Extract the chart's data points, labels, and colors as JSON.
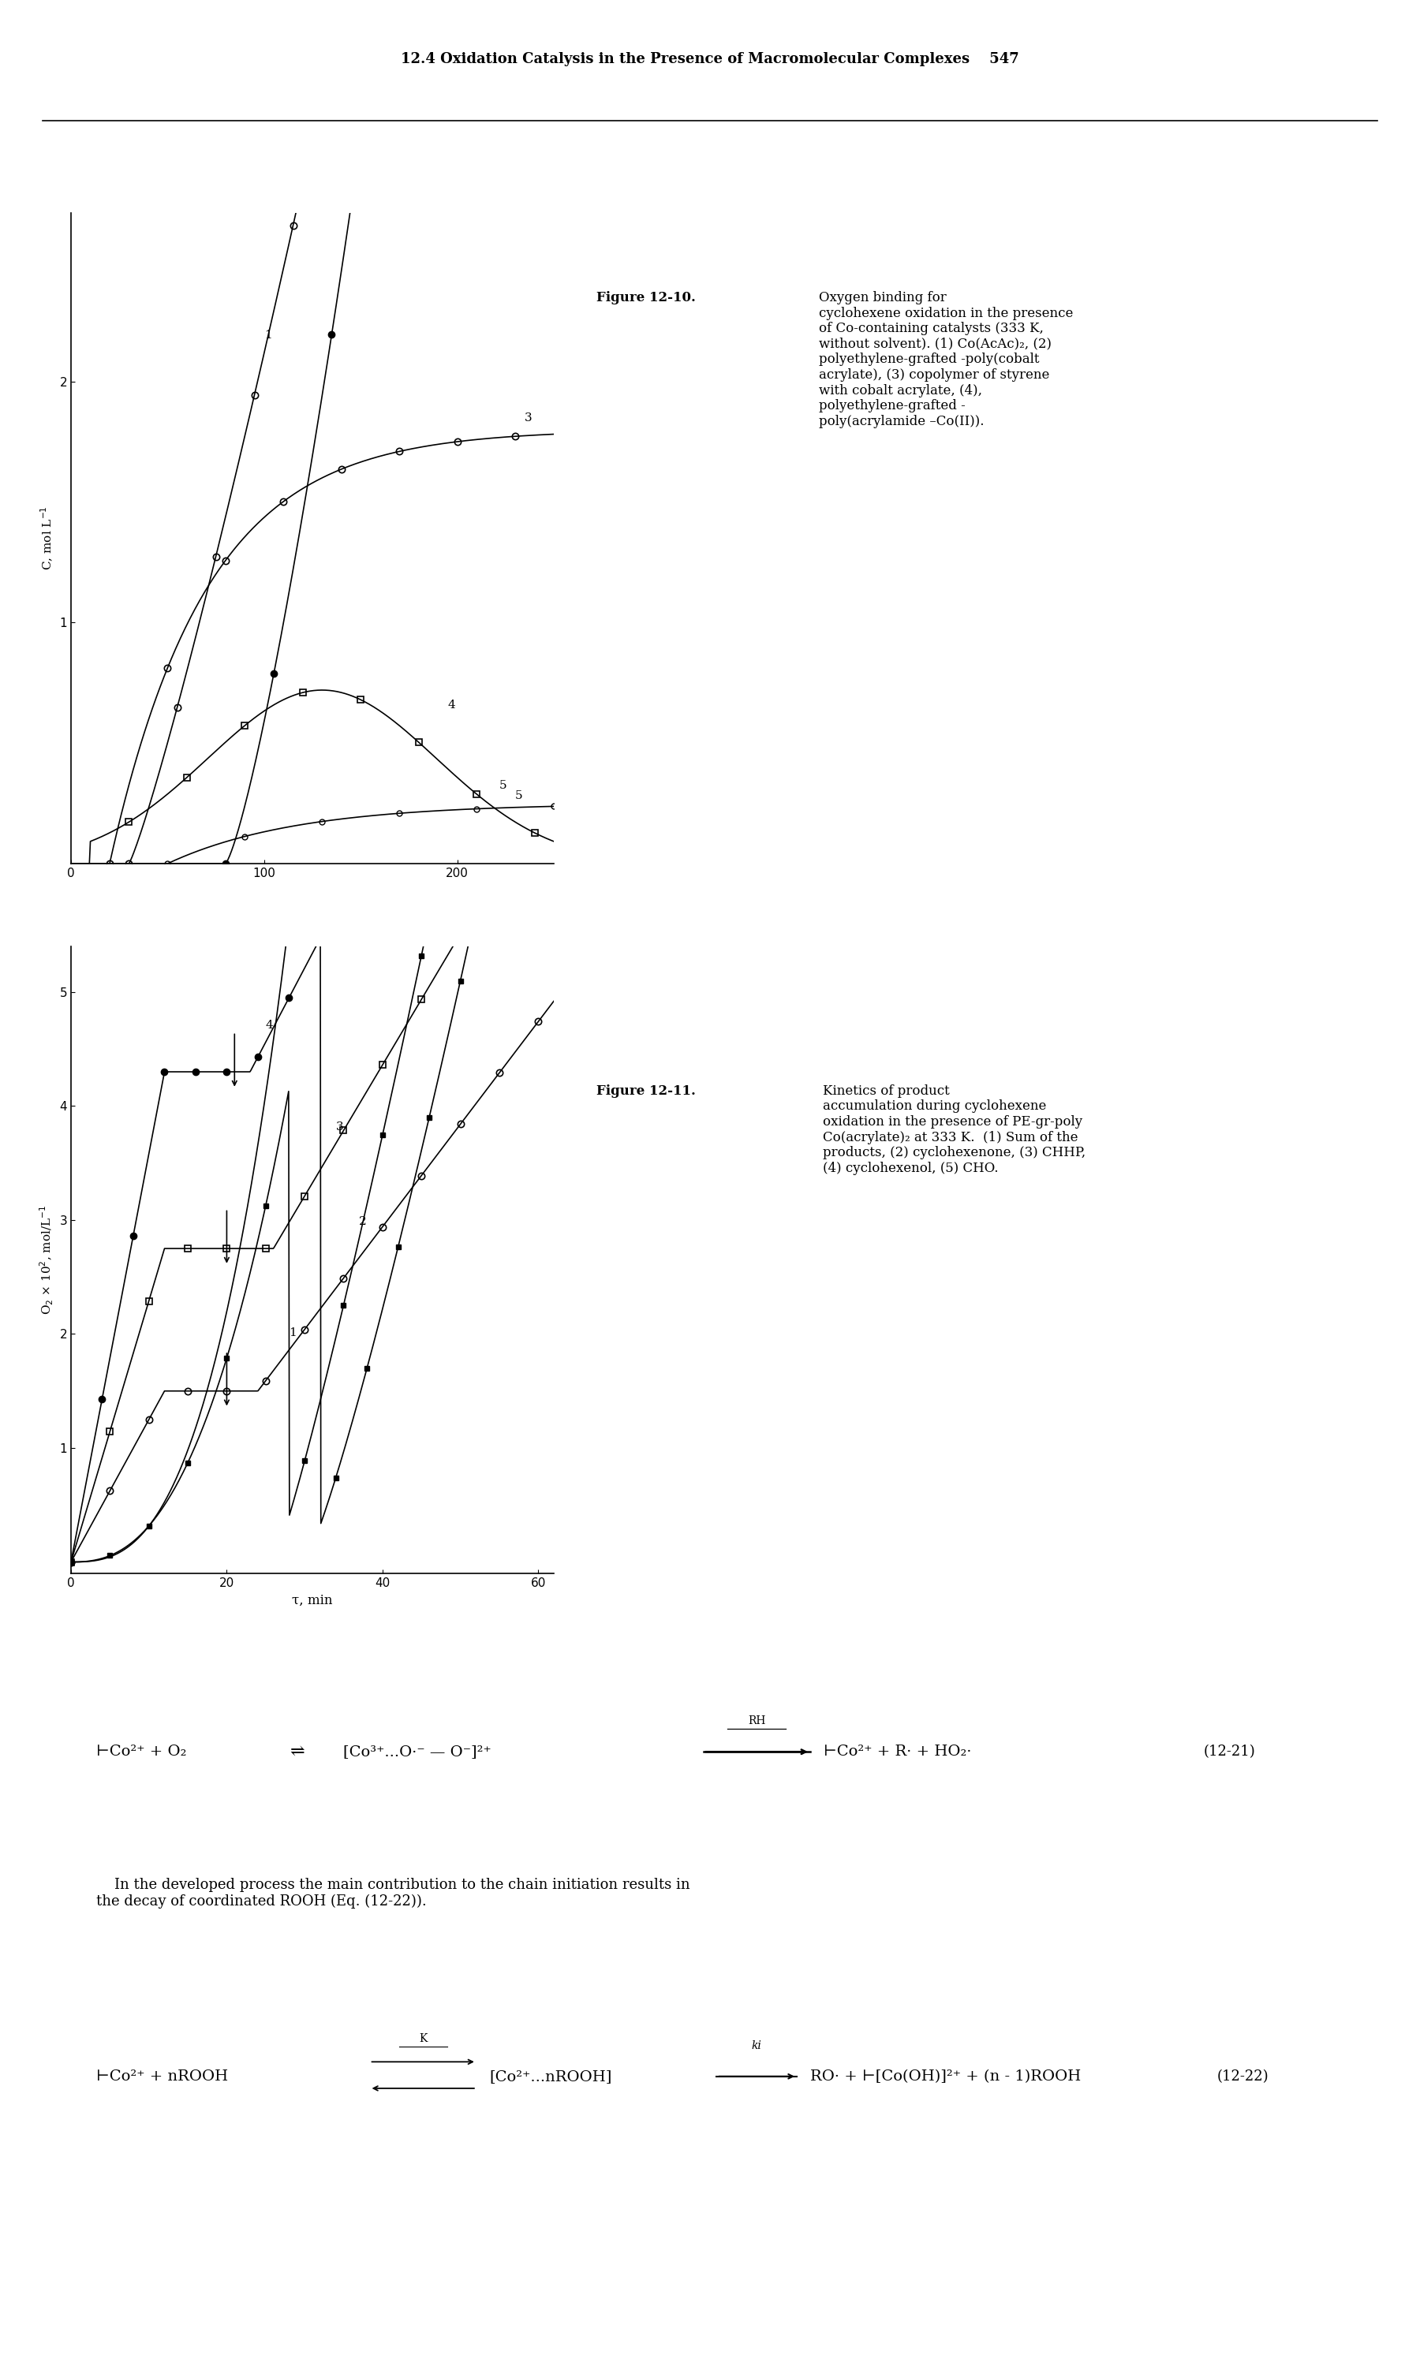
{
  "page_header": "12.4 Oxidation Catalysis in the Presence of Macromolecular Complexes    547",
  "background_color": "#ffffff",
  "fig10_ylabel": "C, mol L$^{-1}$",
  "fig10_xticks": [
    0,
    100,
    200
  ],
  "fig10_yticks": [
    1,
    2
  ],
  "fig10_xlim": [
    0,
    250
  ],
  "fig10_ylim": [
    0,
    2.7
  ],
  "fig11_ylabel": "O$_2$ × 10$^2$, mol/L$^{-1}$",
  "fig11_xlabel": "τ, min",
  "fig11_xticks": [
    0,
    20,
    40,
    60
  ],
  "fig11_yticks": [
    1,
    2,
    3,
    4,
    5
  ],
  "fig11_xlim": [
    0,
    62
  ],
  "fig11_ylim": [
    -0.1,
    5.4
  ]
}
